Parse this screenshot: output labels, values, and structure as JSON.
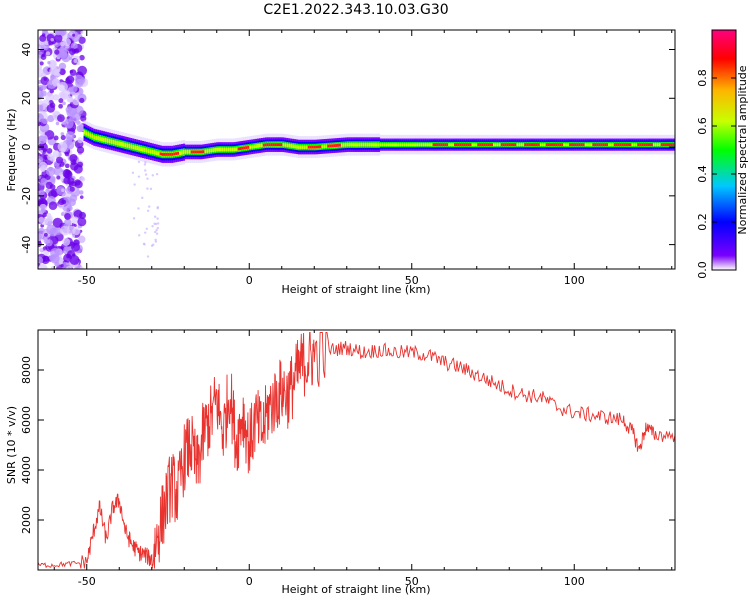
{
  "title": "C2E1.2022.343.10.03.G30",
  "chart_data": [
    {
      "type": "heatmap",
      "xlabel": "Height of straight line (km)",
      "ylabel": "Frequency (Hz)",
      "xlim": [
        -65,
        131
      ],
      "ylim": [
        -50,
        48
      ],
      "xticks": [
        -50,
        0,
        50,
        100
      ],
      "yticks": [
        -40,
        -20,
        0,
        20,
        40
      ],
      "colorbar": {
        "label": "Normalized spectral amplitude",
        "range": [
          0.0,
          1.0
        ],
        "ticks": [
          0.0,
          0.2,
          0.4,
          0.6,
          0.8
        ],
        "colormap": [
          "#ffffff",
          "#7a00ff",
          "#0000ff",
          "#00c8ff",
          "#00ff00",
          "#c8ff00",
          "#ffb400",
          "#ff0000",
          "#ff0080"
        ]
      },
      "ridge": {
        "x": [
          -51,
          -48,
          -45,
          -42,
          -39,
          -36,
          -33,
          -30,
          -27,
          -24,
          -20,
          -15,
          -10,
          -5,
          0,
          5,
          10,
          15,
          20,
          30,
          40,
          50,
          60,
          70,
          80,
          90,
          100,
          110,
          120,
          131
        ],
        "y": [
          6,
          4,
          3,
          2,
          1,
          0,
          -1,
          -2,
          -3,
          -3,
          -2,
          -2,
          -1,
          -1,
          0,
          1,
          1,
          0,
          0,
          1,
          1,
          1,
          1,
          1,
          1,
          1,
          1,
          1,
          1,
          1
        ]
      }
    },
    {
      "type": "line",
      "xlabel": "Height of straight line (km)",
      "ylabel": "SNR (10 * v/v)",
      "xlim": [
        -65,
        131
      ],
      "ylim": [
        0,
        9600
      ],
      "xticks": [
        -50,
        0,
        50,
        100
      ],
      "yticks": [
        2000,
        4000,
        6000,
        8000
      ],
      "color": "#e8332f",
      "series": [
        {
          "x": [
            -65,
            -60,
            -55,
            -50,
            -48,
            -46,
            -44,
            -42,
            -40,
            -38,
            -36,
            -34,
            -32,
            -30,
            -28,
            -26,
            -24,
            -22,
            -20,
            -18,
            -16,
            -14,
            -12,
            -10,
            -8,
            -6,
            -4,
            -2,
            0,
            2,
            4,
            6,
            8,
            10,
            12,
            14,
            16,
            18,
            20,
            25,
            30,
            35,
            40,
            45,
            50,
            55,
            60,
            65,
            70,
            75,
            80,
            85,
            90,
            95,
            100,
            105,
            110,
            115,
            118,
            120,
            122,
            125,
            131
          ],
          "y": [
            200,
            200,
            250,
            300,
            1500,
            2500,
            1200,
            2500,
            2800,
            1500,
            1000,
            700,
            600,
            400,
            1500,
            2500,
            3500,
            3000,
            4500,
            5000,
            4000,
            5500,
            6000,
            6800,
            5500,
            7200,
            5000,
            6300,
            5000,
            6000,
            5500,
            6500,
            6800,
            7200,
            7000,
            7600,
            8200,
            8400,
            8600,
            8800,
            8900,
            8700,
            8800,
            8700,
            8700,
            8600,
            8300,
            8100,
            7800,
            7500,
            7200,
            7000,
            6900,
            6500,
            6300,
            6200,
            6100,
            6000,
            5500,
            4800,
            5700,
            5400,
            5400
          ]
        }
      ]
    }
  ]
}
